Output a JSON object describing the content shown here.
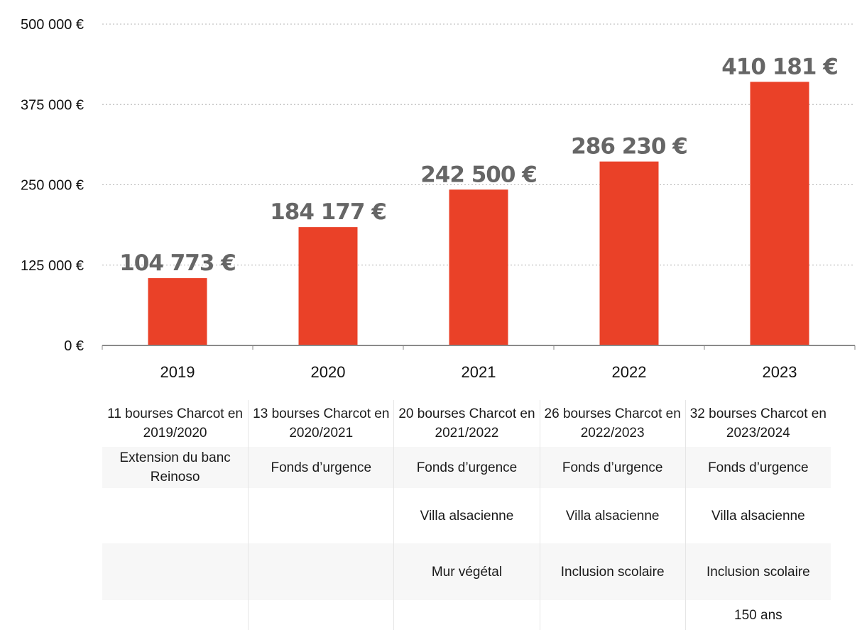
{
  "chart_data": {
    "type": "bar",
    "categories": [
      "2019",
      "2020",
      "2021",
      "2022",
      "2023"
    ],
    "values": [
      104773,
      184177,
      242500,
      286230,
      410181
    ],
    "data_labels": [
      "104 773 €",
      "184 177 €",
      "242 500 €",
      "286 230 €",
      "410 181 €"
    ],
    "yticks": [
      0,
      125000,
      250000,
      375000,
      500000
    ],
    "ytick_labels": [
      "0 €",
      "125 000 €",
      "250 000 €",
      "375 000 €",
      "500 000 €"
    ],
    "ylim": [
      0,
      500000
    ],
    "grid": true,
    "bar_color": "#ea4128",
    "label_color": "#666666"
  },
  "table": {
    "rows": [
      [
        "11 bourses Charcot en 2019/2020",
        "13 bourses Charcot en 2020/2021",
        "20 bourses Charcot en 2021/2022",
        "26 bourses Charcot en 2022/2023",
        "32 bourses Charcot en 2023/2024"
      ],
      [
        "Extension du banc Reinoso",
        "Fonds d’urgence",
        "Fonds d’urgence",
        "Fonds d’urgence",
        "Fonds d’urgence"
      ],
      [
        "",
        "",
        "Villa alsacienne",
        "Villa alsacienne",
        "Villa alsacienne"
      ],
      [
        "",
        "",
        "Mur végétal",
        "Inclusion scolaire",
        "Inclusion scolaire"
      ],
      [
        "",
        "",
        "",
        "",
        "150 ans"
      ]
    ]
  }
}
